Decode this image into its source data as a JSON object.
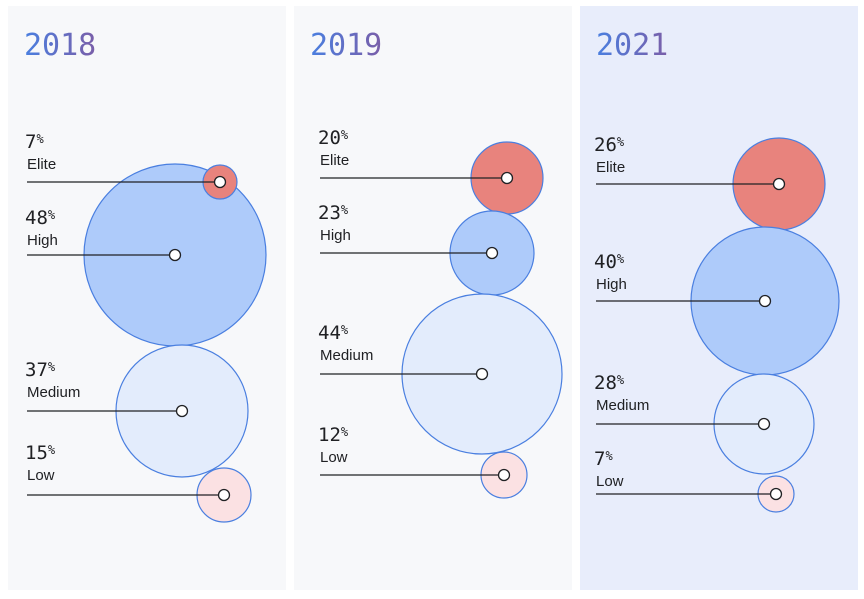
{
  "chart_data": {
    "type": "bubble",
    "unit": "%",
    "panels": [
      {
        "title": "2018",
        "categories": [
          "Elite",
          "High",
          "Medium",
          "Low"
        ],
        "values": [
          7,
          48,
          37,
          15
        ]
      },
      {
        "title": "2019",
        "categories": [
          "Elite",
          "High",
          "Medium",
          "Low"
        ],
        "values": [
          20,
          23,
          44,
          12
        ]
      },
      {
        "title": "2021",
        "categories": [
          "Elite",
          "High",
          "Medium",
          "Low"
        ],
        "values": [
          26,
          40,
          28,
          7
        ]
      }
    ],
    "colors": {
      "Elite": "#e8837d",
      "High": "#aecbfa",
      "Medium": "#e3ecfc",
      "Low": "#fbe1e3",
      "stroke": "#4a7fe0",
      "title_from": "#4a7fe0",
      "title_to": "#7a5ea8"
    }
  }
}
